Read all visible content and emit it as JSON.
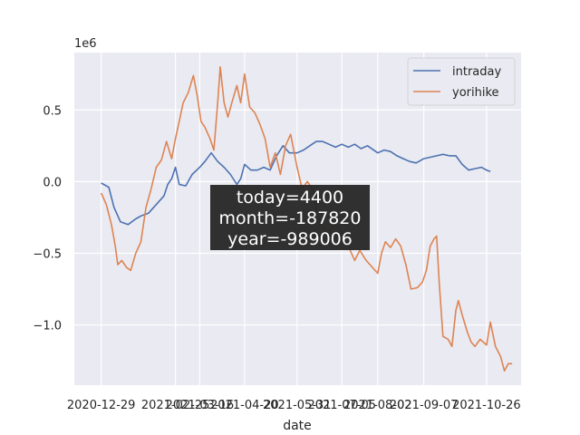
{
  "chart_data": {
    "type": "line",
    "xlabel": "date",
    "ylabel": "",
    "y_offset_label": "1e6",
    "xlim": [
      "2020-12-08",
      "2021-11-22"
    ],
    "ylim": [
      -1.42,
      0.9
    ],
    "y_scale_note": "values in units of 1e6",
    "grid": true,
    "legend_position": "top-right",
    "x_ticks": [
      "2020-12-29",
      "2021-02-25",
      "2021-03-16",
      "2021-04-20",
      "2021-05-31",
      "2021-07-05",
      "2021-08-02",
      "2021-09-07",
      "2021-10-26"
    ],
    "x_tick_labels": [
      "2020-12-29",
      "2021-02-25",
      "2021-03-16",
      "2021-04-20",
      "2021-05-31",
      "2021-07-05",
      "2021-08-02",
      "2021-09-07",
      "2021-10-26"
    ],
    "y_ticks": [
      0.5,
      0.0,
      -0.5,
      -1.0
    ],
    "y_tick_labels": [
      "0.5",
      "0.0",
      "−0.5",
      "−1.0"
    ],
    "series": [
      {
        "name": "intraday",
        "color": "#4c72b0",
        "points": [
          [
            "2020-12-29",
            -0.01
          ],
          [
            "2021-01-04",
            -0.04
          ],
          [
            "2021-01-08",
            -0.18
          ],
          [
            "2021-01-13",
            -0.28
          ],
          [
            "2021-01-19",
            -0.3
          ],
          [
            "2021-01-25",
            -0.26
          ],
          [
            "2021-01-29",
            -0.24
          ],
          [
            "2021-02-04",
            -0.22
          ],
          [
            "2021-02-10",
            -0.16
          ],
          [
            "2021-02-16",
            -0.1
          ],
          [
            "2021-02-19",
            -0.02
          ],
          [
            "2021-02-22",
            0.02
          ],
          [
            "2021-02-25",
            0.1
          ],
          [
            "2021-02-28",
            -0.02
          ],
          [
            "2021-03-05",
            -0.03
          ],
          [
            "2021-03-10",
            0.05
          ],
          [
            "2021-03-16",
            0.1
          ],
          [
            "2021-03-20",
            0.14
          ],
          [
            "2021-03-25",
            0.2
          ],
          [
            "2021-03-30",
            0.14
          ],
          [
            "2021-04-04",
            0.1
          ],
          [
            "2021-04-09",
            0.05
          ],
          [
            "2021-04-14",
            -0.02
          ],
          [
            "2021-04-17",
            0.02
          ],
          [
            "2021-04-20",
            0.12
          ],
          [
            "2021-04-25",
            0.08
          ],
          [
            "2021-04-30",
            0.08
          ],
          [
            "2021-05-05",
            0.1
          ],
          [
            "2021-05-10",
            0.08
          ],
          [
            "2021-05-15",
            0.18
          ],
          [
            "2021-05-20",
            0.25
          ],
          [
            "2021-05-25",
            0.2
          ],
          [
            "2021-05-31",
            0.2
          ],
          [
            "2021-06-05",
            0.22
          ],
          [
            "2021-06-10",
            0.25
          ],
          [
            "2021-06-15",
            0.28
          ],
          [
            "2021-06-20",
            0.28
          ],
          [
            "2021-06-25",
            0.26
          ],
          [
            "2021-06-30",
            0.24
          ],
          [
            "2021-07-05",
            0.26
          ],
          [
            "2021-07-10",
            0.24
          ],
          [
            "2021-07-15",
            0.26
          ],
          [
            "2021-07-20",
            0.23
          ],
          [
            "2021-07-25",
            0.25
          ],
          [
            "2021-08-02",
            0.2
          ],
          [
            "2021-08-07",
            0.22
          ],
          [
            "2021-08-12",
            0.21
          ],
          [
            "2021-08-17",
            0.18
          ],
          [
            "2021-08-22",
            0.16
          ],
          [
            "2021-08-27",
            0.14
          ],
          [
            "2021-09-01",
            0.13
          ],
          [
            "2021-09-07",
            0.16
          ],
          [
            "2021-09-12",
            0.17
          ],
          [
            "2021-09-17",
            0.18
          ],
          [
            "2021-09-22",
            0.19
          ],
          [
            "2021-09-27",
            0.18
          ],
          [
            "2021-10-02",
            0.18
          ],
          [
            "2021-10-07",
            0.12
          ],
          [
            "2021-10-12",
            0.08
          ],
          [
            "2021-10-17",
            0.09
          ],
          [
            "2021-10-22",
            0.1
          ],
          [
            "2021-10-26",
            0.08
          ],
          [
            "2021-10-29",
            0.07
          ]
        ]
      },
      {
        "name": "yorihike",
        "color": "#dd8452",
        "points": [
          [
            "2020-12-29",
            -0.08
          ],
          [
            "2021-01-02",
            -0.16
          ],
          [
            "2021-01-06",
            -0.3
          ],
          [
            "2021-01-09",
            -0.45
          ],
          [
            "2021-01-11",
            -0.58
          ],
          [
            "2021-01-14",
            -0.55
          ],
          [
            "2021-01-18",
            -0.6
          ],
          [
            "2021-01-21",
            -0.62
          ],
          [
            "2021-01-25",
            -0.5
          ],
          [
            "2021-01-29",
            -0.42
          ],
          [
            "2021-02-02",
            -0.18
          ],
          [
            "2021-02-06",
            -0.05
          ],
          [
            "2021-02-10",
            0.1
          ],
          [
            "2021-02-14",
            0.15
          ],
          [
            "2021-02-18",
            0.28
          ],
          [
            "2021-02-22",
            0.16
          ],
          [
            "2021-02-25",
            0.3
          ],
          [
            "2021-02-28",
            0.42
          ],
          [
            "2021-03-03",
            0.55
          ],
          [
            "2021-03-07",
            0.62
          ],
          [
            "2021-03-11",
            0.74
          ],
          [
            "2021-03-14",
            0.6
          ],
          [
            "2021-03-17",
            0.42
          ],
          [
            "2021-03-20",
            0.38
          ],
          [
            "2021-03-24",
            0.3
          ],
          [
            "2021-03-27",
            0.22
          ],
          [
            "2021-03-30",
            0.55
          ],
          [
            "2021-04-01",
            0.8
          ],
          [
            "2021-04-04",
            0.55
          ],
          [
            "2021-04-07",
            0.45
          ],
          [
            "2021-04-10",
            0.55
          ],
          [
            "2021-04-14",
            0.67
          ],
          [
            "2021-04-17",
            0.55
          ],
          [
            "2021-04-20",
            0.75
          ],
          [
            "2021-04-24",
            0.52
          ],
          [
            "2021-04-28",
            0.48
          ],
          [
            "2021-05-02",
            0.4
          ],
          [
            "2021-05-06",
            0.3
          ],
          [
            "2021-05-10",
            0.1
          ],
          [
            "2021-05-14",
            0.2
          ],
          [
            "2021-05-18",
            0.05
          ],
          [
            "2021-05-22",
            0.25
          ],
          [
            "2021-05-26",
            0.33
          ],
          [
            "2021-05-31",
            0.1
          ],
          [
            "2021-06-04",
            -0.05
          ],
          [
            "2021-06-08",
            0.0
          ],
          [
            "2021-06-12",
            -0.05
          ],
          [
            "2021-06-18",
            -0.3
          ],
          [
            "2021-06-24",
            -0.35
          ],
          [
            "2021-06-30",
            -0.3
          ],
          [
            "2021-07-05",
            -0.35
          ],
          [
            "2021-07-10",
            -0.45
          ],
          [
            "2021-07-15",
            -0.55
          ],
          [
            "2021-07-19",
            -0.48
          ],
          [
            "2021-07-24",
            -0.55
          ],
          [
            "2021-08-02",
            -0.64
          ],
          [
            "2021-08-05",
            -0.5
          ],
          [
            "2021-08-08",
            -0.42
          ],
          [
            "2021-08-12",
            -0.46
          ],
          [
            "2021-08-16",
            -0.4
          ],
          [
            "2021-08-20",
            -0.45
          ],
          [
            "2021-08-24",
            -0.58
          ],
          [
            "2021-08-28",
            -0.75
          ],
          [
            "2021-09-02",
            -0.74
          ],
          [
            "2021-09-06",
            -0.7
          ],
          [
            "2021-09-09",
            -0.62
          ],
          [
            "2021-09-12",
            -0.45
          ],
          [
            "2021-09-15",
            -0.4
          ],
          [
            "2021-09-17",
            -0.38
          ],
          [
            "2021-09-19",
            -0.7
          ],
          [
            "2021-09-22",
            -1.08
          ],
          [
            "2021-09-26",
            -1.1
          ],
          [
            "2021-09-29",
            -1.15
          ],
          [
            "2021-10-02",
            -0.9
          ],
          [
            "2021-10-04",
            -0.83
          ],
          [
            "2021-10-07",
            -0.93
          ],
          [
            "2021-10-11",
            -1.05
          ],
          [
            "2021-10-14",
            -1.12
          ],
          [
            "2021-10-17",
            -1.15
          ],
          [
            "2021-10-21",
            -1.1
          ],
          [
            "2021-10-26",
            -1.14
          ],
          [
            "2021-10-29",
            -0.98
          ],
          [
            "2021-11-02",
            -1.15
          ],
          [
            "2021-11-06",
            -1.22
          ],
          [
            "2021-11-09",
            -1.32
          ],
          [
            "2021-11-12",
            -1.27
          ],
          [
            "2021-11-15",
            -1.27
          ]
        ]
      }
    ],
    "annotation": {
      "lines": [
        "today=4400",
        "month=-187820",
        "year=-989006"
      ]
    }
  }
}
